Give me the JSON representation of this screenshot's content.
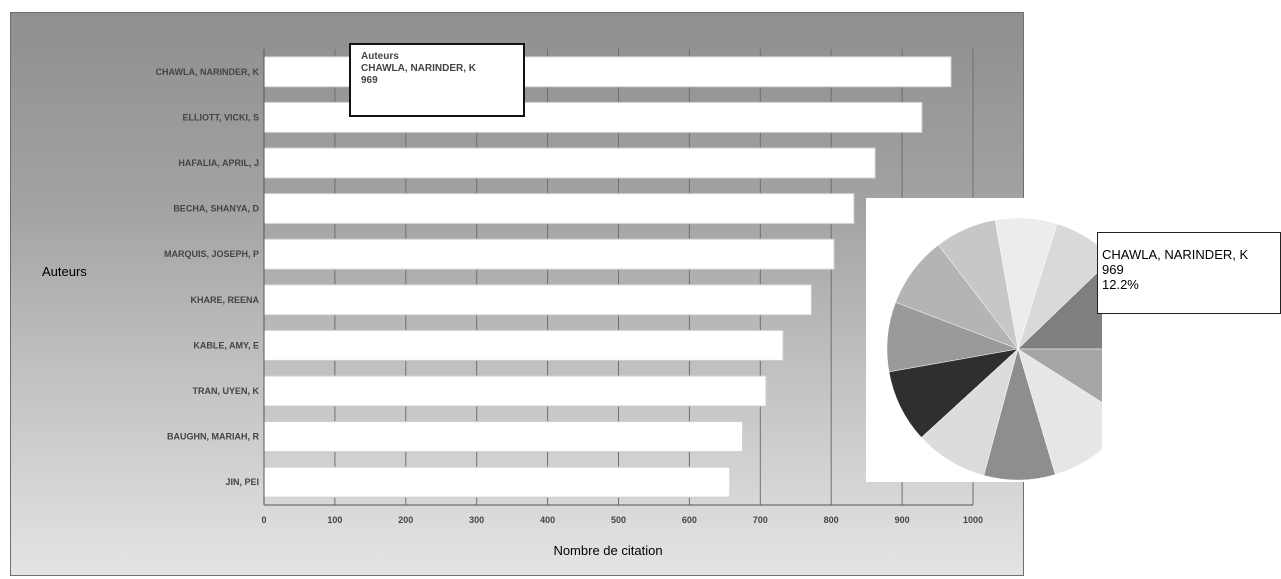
{
  "chart_data": [
    {
      "type": "bar",
      "orientation": "horizontal",
      "categories": [
        "CHAWLA, NARINDER, K",
        "ELLIOTT, VICKI, S",
        "HAFALIA, APRIL, J",
        "BECHA, SHANYA, D",
        "MARQUIS, JOSEPH, P",
        "KHARE, REENA",
        "KABLE, AMY, E",
        "TRAN, UYEN, K",
        "BAUGHN, MARIAH, R",
        "JIN, PEI"
      ],
      "values": [
        969,
        928,
        862,
        832,
        804,
        772,
        732,
        708,
        675,
        657
      ],
      "xlabel": "Nombre de citation",
      "ylabel": "Auteurs",
      "xlim": [
        0,
        1000
      ],
      "xticks": [
        "0",
        "100",
        "200",
        "300",
        "400",
        "500",
        "600",
        "700",
        "800",
        "900",
        "1000"
      ],
      "grid": "vertical lines",
      "bar_color": "#ffffff",
      "tooltip": {
        "title": "Auteurs",
        "name": "CHAWLA, NARINDER, K",
        "value": "969"
      }
    },
    {
      "type": "pie",
      "slices": [
        {
          "label": "CHAWLA, NARINDER, K",
          "value": 12.2,
          "color": "#7f7f7f"
        },
        {
          "label": "",
          "value": 8.0,
          "color": "#d9d9d9"
        },
        {
          "label": "",
          "value": 7.6,
          "color": "#ececec"
        },
        {
          "label": "",
          "value": 7.6,
          "color": "#c7c7c7"
        },
        {
          "label": "",
          "value": 8.8,
          "color": "#b4b4b4"
        },
        {
          "label": "",
          "value": 8.6,
          "color": "#9a9a9a"
        },
        {
          "label": "",
          "value": 9.0,
          "color": "#2f2f2f"
        },
        {
          "label": "",
          "value": 9.0,
          "color": "#dcdcdc"
        },
        {
          "label": "",
          "value": 8.8,
          "color": "#8e8e8e"
        },
        {
          "label": "",
          "value": 11.4,
          "color": "#e6e6e6"
        },
        {
          "label": "",
          "value": 9.0,
          "color": "#a6a6a6"
        }
      ],
      "tooltip": {
        "name": "CHAWLA, NARINDER, K",
        "value": "969",
        "percent": "12.2%"
      }
    }
  ]
}
